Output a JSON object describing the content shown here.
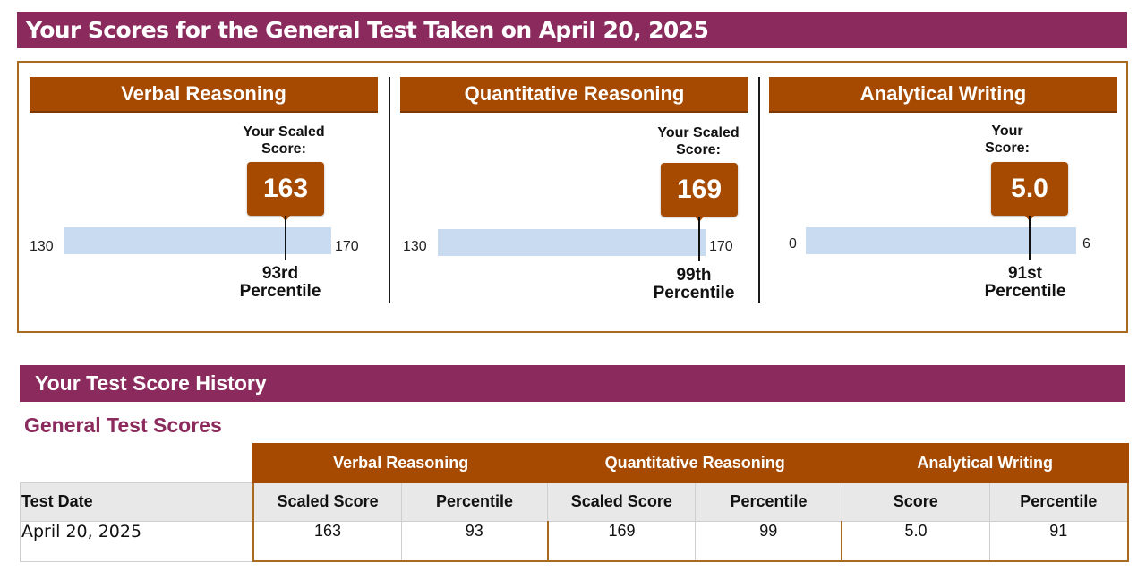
{
  "page_title": "Your Scores for the General Test Taken on April 20, 2025",
  "scores": [
    {
      "section": "Verbal Reasoning",
      "caption": "Your Scaled Score:",
      "score": "163",
      "min": "130",
      "max": "170",
      "score_fraction": 0.825,
      "percentile_rank": "93rd",
      "percentile_word": "Percentile"
    },
    {
      "section": "Quantitative Reasoning",
      "caption": "Your Scaled Score:",
      "score": "169",
      "min": "130",
      "max": "170",
      "score_fraction": 0.975,
      "percentile_rank": "99th",
      "percentile_word": "Percentile"
    },
    {
      "section": "Analytical Writing",
      "caption": "Your Score:",
      "score": "5.0",
      "min": "0",
      "max": "6",
      "score_fraction": 0.833,
      "percentile_rank": "91st",
      "percentile_word": "Percentile"
    }
  ],
  "history": {
    "heading": "Your Test Score History",
    "subheading": "General Test Scores",
    "groups": [
      "Verbal Reasoning",
      "Quantitative Reasoning",
      "Analytical Writing"
    ],
    "columns": [
      "Test Date",
      "Scaled Score",
      "Percentile",
      "Scaled Score",
      "Percentile",
      "Score",
      "Percentile"
    ],
    "rows": [
      [
        "April 20, 2025",
        "163",
        "93",
        "169",
        "99",
        "5.0",
        "91"
      ]
    ]
  },
  "colors": {
    "banner": "#8b2a5c",
    "section_header": "#a54a00",
    "score_bar": "#c8dbf0",
    "subheading": "#8b2a5c"
  }
}
